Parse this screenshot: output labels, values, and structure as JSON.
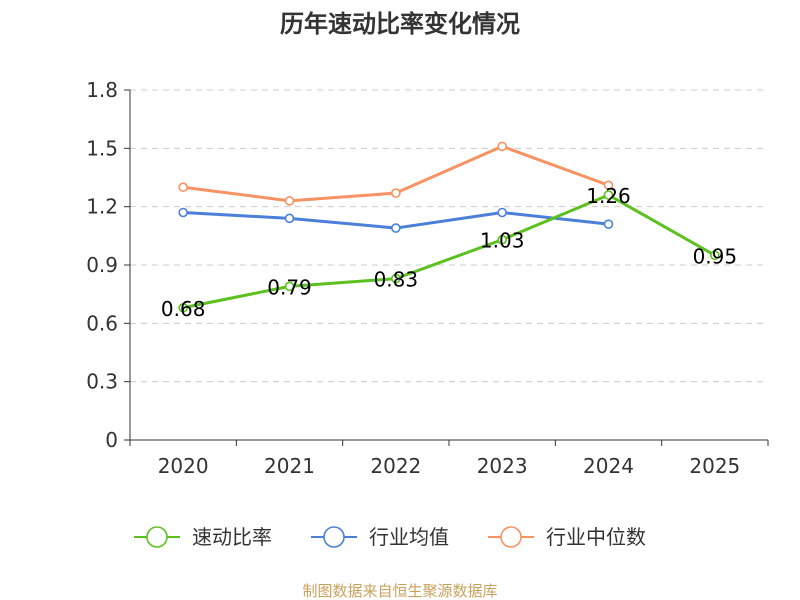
{
  "chart_data": {
    "type": "line",
    "title": "历年速动比率变化情况",
    "categories": [
      "2020",
      "2021",
      "2022",
      "2023",
      "2024",
      "2025"
    ],
    "ylim": [
      0,
      1.8
    ],
    "yticks": [
      "0",
      "0.3",
      "0.6",
      "0.9",
      "1.2",
      "1.5",
      "1.8"
    ],
    "grid": true,
    "legend_position": "bottom",
    "series": [
      {
        "name": "速动比率",
        "color": "#5CC01E",
        "values": [
          0.68,
          0.79,
          0.83,
          1.03,
          1.26,
          0.95
        ],
        "labels": [
          "0.68",
          "0.79",
          "0.83",
          "1.03",
          "1.26",
          "0.95"
        ]
      },
      {
        "name": "行业均值",
        "color": "#4B7FD9",
        "values": [
          1.17,
          1.14,
          1.09,
          1.17,
          1.11,
          null
        ]
      },
      {
        "name": "行业中位数",
        "color": "#F79262",
        "values": [
          1.3,
          1.23,
          1.27,
          1.51,
          1.31,
          null
        ]
      }
    ],
    "source": "制图数据来自恒生聚源数据库",
    "source_color": "#C8A25C"
  }
}
